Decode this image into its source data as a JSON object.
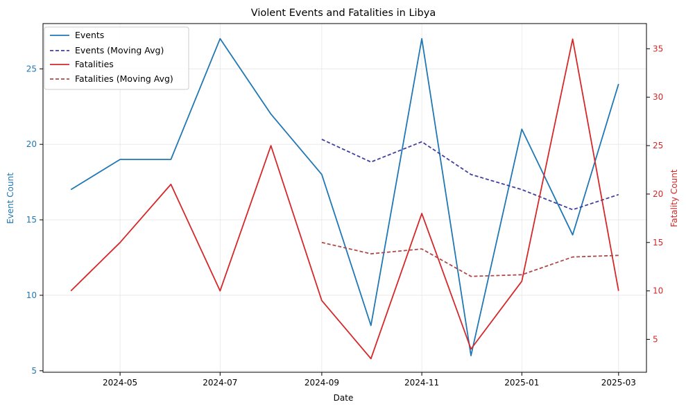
{
  "chart_data": {
    "type": "line",
    "title": "Violent Events and Fatalities in Libya",
    "xlabel": "Date",
    "ylabel_left": "Event Count",
    "ylabel_right": "Fatality Count",
    "x": [
      "2024-04",
      "2024-05",
      "2024-06",
      "2024-07",
      "2024-08",
      "2024-09",
      "2024-10",
      "2024-11",
      "2024-12",
      "2025-01",
      "2025-02",
      "2025-03"
    ],
    "x_ticks": [
      "2024-05",
      "2024-07",
      "2024-09",
      "2024-11",
      "2025-01",
      "2025-03"
    ],
    "xlim": [
      "2024-03-15",
      "2025-03-18"
    ],
    "ylim_left": [
      4.9,
      28.0
    ],
    "ylim_right": [
      1.6,
      37.6
    ],
    "yticks_left": [
      5,
      10,
      15,
      20,
      25
    ],
    "yticks_right": [
      5,
      10,
      15,
      20,
      25,
      30,
      35
    ],
    "grid": true,
    "legend_position": "top-left",
    "series": [
      {
        "name": "Events",
        "axis": "left",
        "style": "solid",
        "color": "#1f77b4",
        "values": [
          17,
          19,
          19,
          27,
          22,
          18,
          8,
          27,
          6,
          21,
          14,
          24
        ]
      },
      {
        "name": "Events (Moving Avg)",
        "axis": "left",
        "style": "dashed",
        "color": "#3f3f9f",
        "values": [
          null,
          null,
          null,
          null,
          null,
          20.33,
          18.83,
          20.17,
          18.0,
          17.0,
          15.67,
          16.67
        ]
      },
      {
        "name": "Fatalities",
        "axis": "right",
        "style": "solid",
        "color": "#d62728",
        "values": [
          10,
          15,
          21,
          10,
          25,
          9,
          3,
          18,
          4,
          11,
          36,
          10
        ]
      },
      {
        "name": "Fatalities (Moving Avg)",
        "axis": "right",
        "style": "dashed",
        "color": "#b04848",
        "values": [
          null,
          null,
          null,
          null,
          null,
          15.0,
          13.83,
          14.33,
          11.5,
          11.67,
          13.5,
          13.67
        ]
      }
    ]
  }
}
